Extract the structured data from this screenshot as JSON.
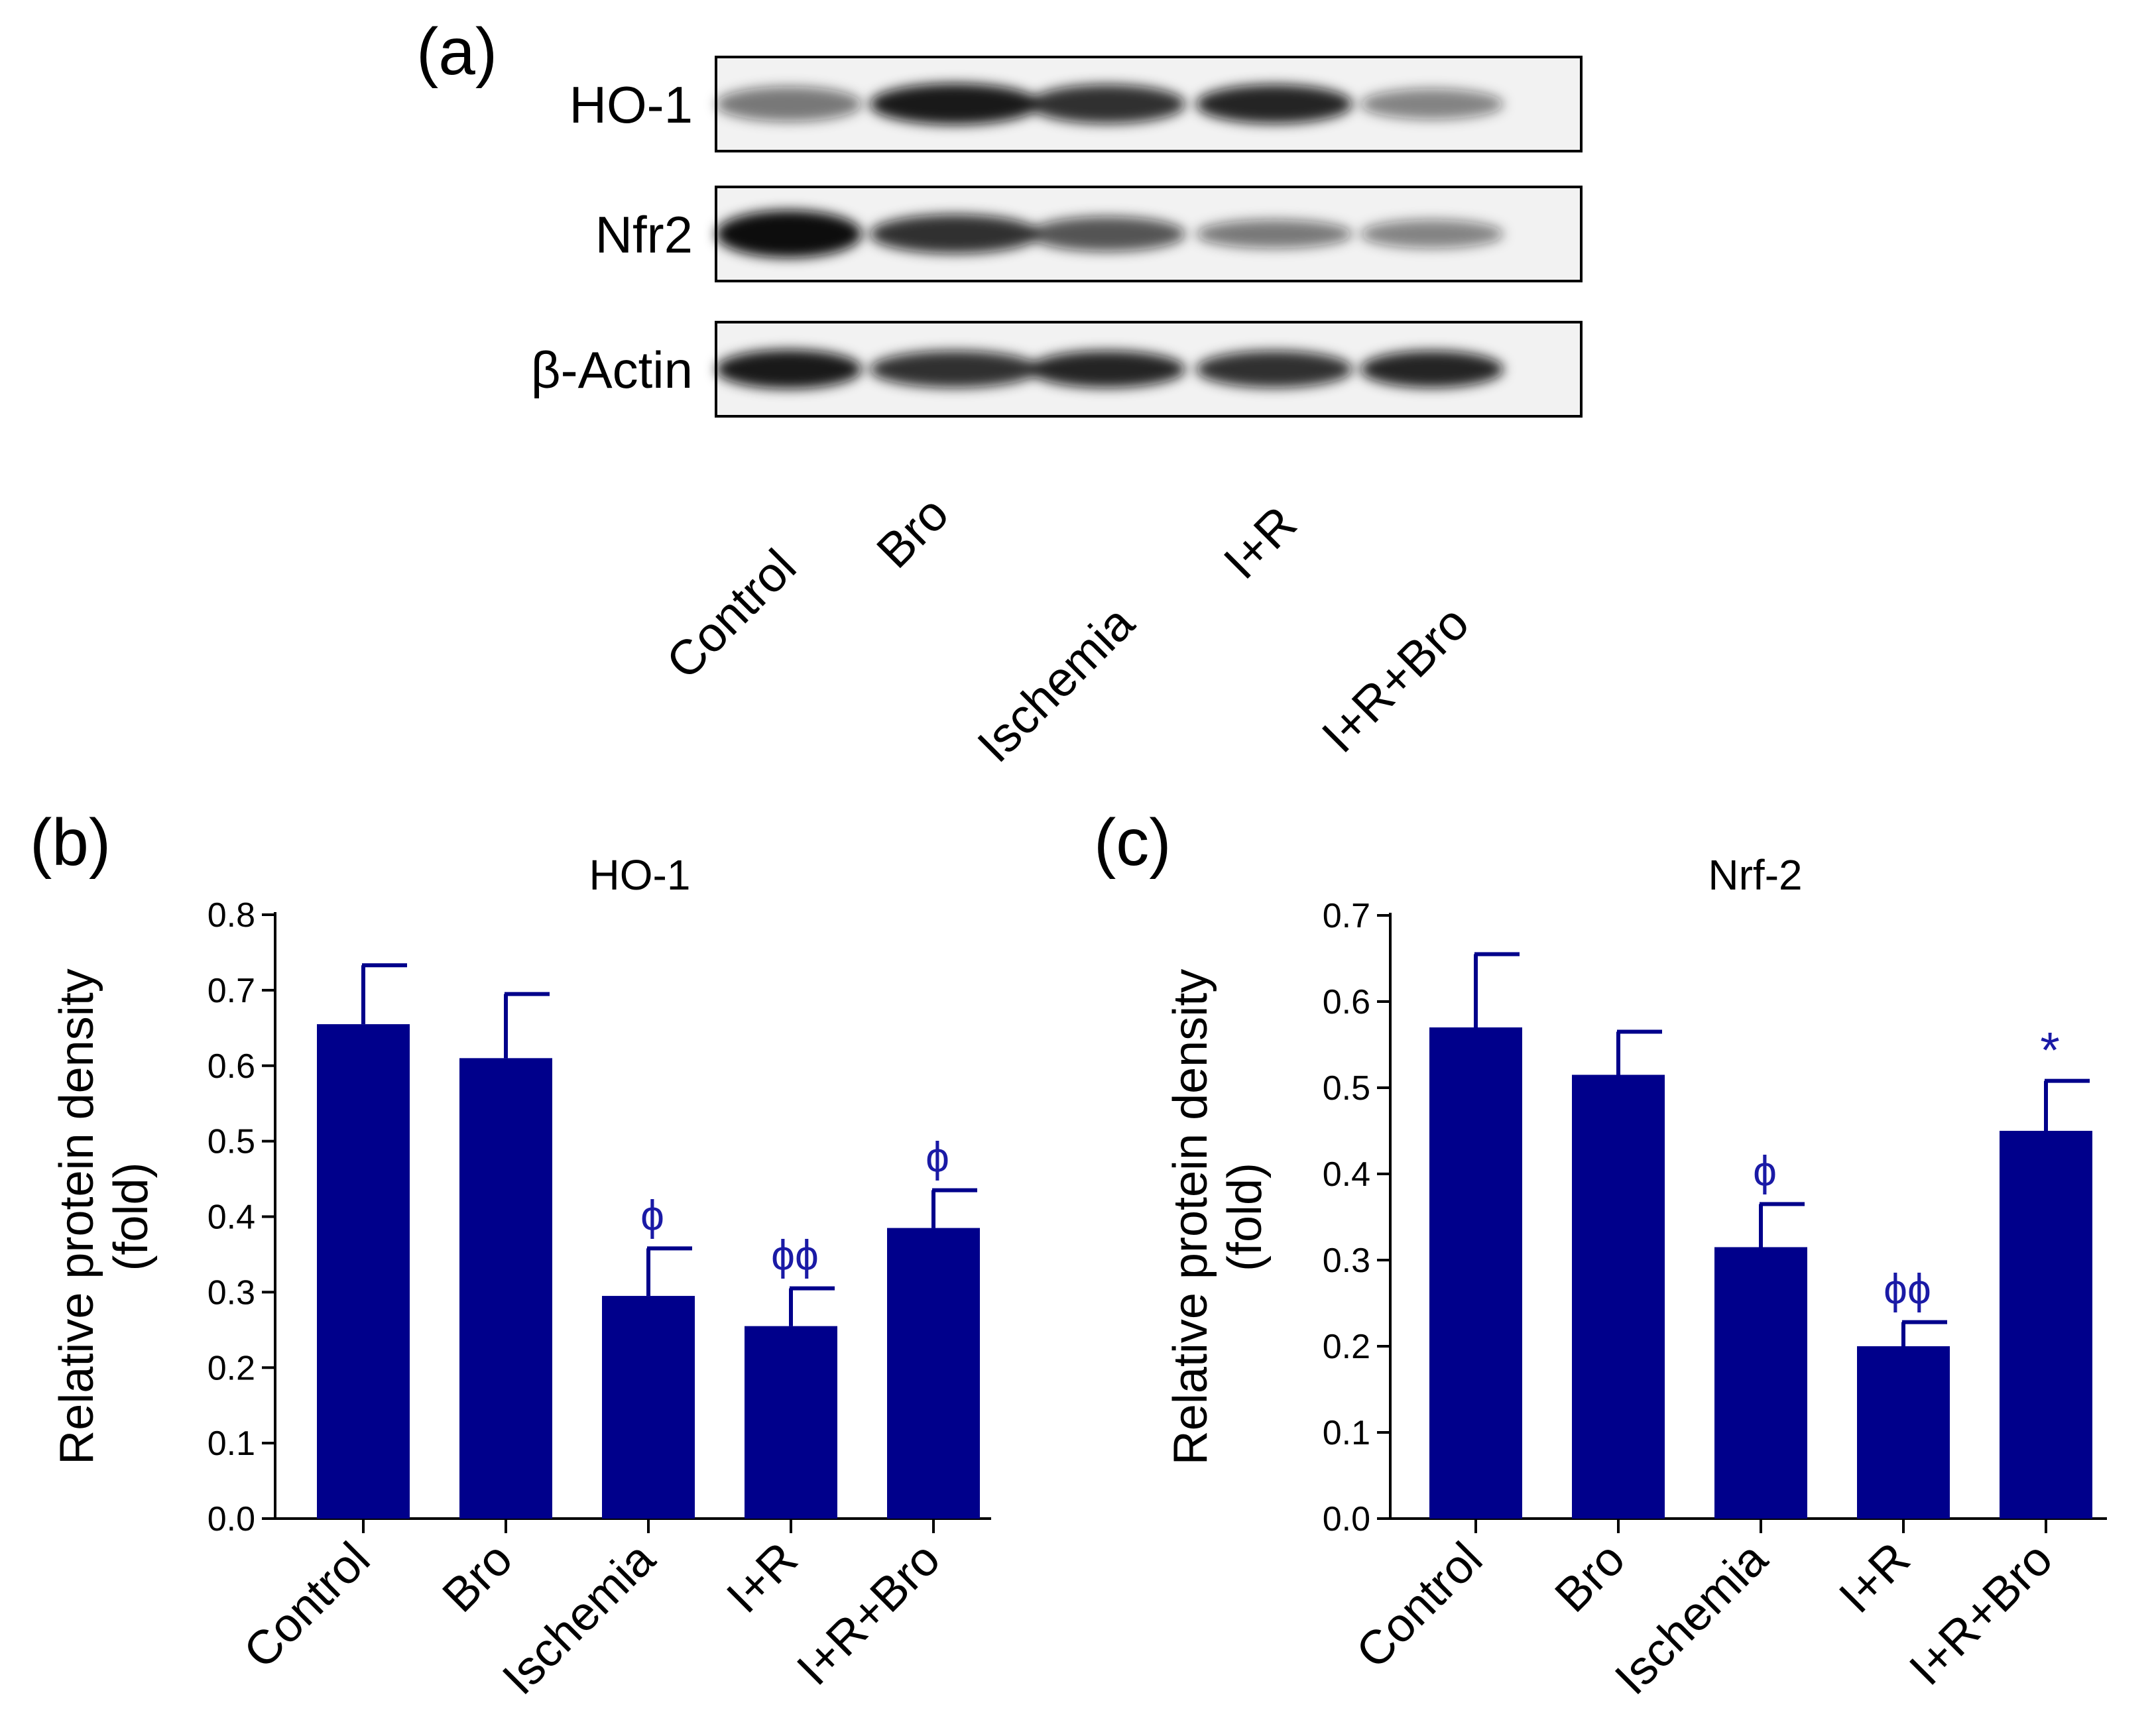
{
  "figure": {
    "colors": {
      "bar": "#00008b",
      "annotation": "#1a1aa6",
      "axis": "#000000"
    }
  },
  "blot_panel": {
    "label": "(a)",
    "rows": [
      {
        "name": "HO-1",
        "band_intensity": [
          0.55,
          0.95,
          0.85,
          0.9,
          0.5
        ],
        "band_thickness": [
          0.45,
          0.6,
          0.55,
          0.55,
          0.35
        ]
      },
      {
        "name": "Nfr2",
        "band_intensity": [
          1.0,
          0.85,
          0.7,
          0.55,
          0.5
        ],
        "band_thickness": [
          0.75,
          0.55,
          0.45,
          0.3,
          0.3
        ]
      },
      {
        "name": "β-Actin",
        "band_intensity": [
          0.95,
          0.85,
          0.9,
          0.85,
          0.9
        ],
        "band_thickness": [
          0.55,
          0.5,
          0.5,
          0.5,
          0.5
        ]
      }
    ],
    "lanes": [
      "Control",
      "Bro",
      "Ischemia",
      "I+R",
      "I+R+Bro"
    ]
  },
  "chart_data": [
    {
      "panel": "(b)",
      "type": "bar",
      "title": "HO-1",
      "xlabel": "",
      "ylabel_lines": [
        "Relative protein density",
        "(fold)"
      ],
      "categories": [
        "Control",
        "Bro",
        "Ischemia",
        "I+R",
        "I+R+Bro"
      ],
      "values": [
        0.655,
        0.61,
        0.295,
        0.255,
        0.385
      ],
      "errors": [
        0.078,
        0.085,
        0.063,
        0.05,
        0.05
      ],
      "annotations": [
        "",
        "",
        "ϕ",
        "ϕϕ",
        "ϕ"
      ],
      "ylim": [
        0,
        0.8
      ],
      "yticks": [
        "0.0",
        "0.1",
        "0.2",
        "0.3",
        "0.4",
        "0.5",
        "0.6",
        "0.7",
        "0.8"
      ],
      "grid": false
    },
    {
      "panel": "(c)",
      "type": "bar",
      "title": "Nrf-2",
      "xlabel": "",
      "ylabel_lines": [
        "Relative protein density",
        "(fold)"
      ],
      "categories": [
        "Control",
        "Bro",
        "Ischemia",
        "I+R",
        "I+R+Bro"
      ],
      "values": [
        0.57,
        0.515,
        0.315,
        0.2,
        0.45
      ],
      "errors": [
        0.085,
        0.05,
        0.05,
        0.028,
        0.058
      ],
      "annotations": [
        "",
        "",
        "ϕ",
        "ϕϕ",
        "*"
      ],
      "ylim": [
        0,
        0.7
      ],
      "yticks": [
        "0.0",
        "0.1",
        "0.2",
        "0.3",
        "0.4",
        "0.5",
        "0.6",
        "0.7"
      ],
      "grid": false
    }
  ]
}
